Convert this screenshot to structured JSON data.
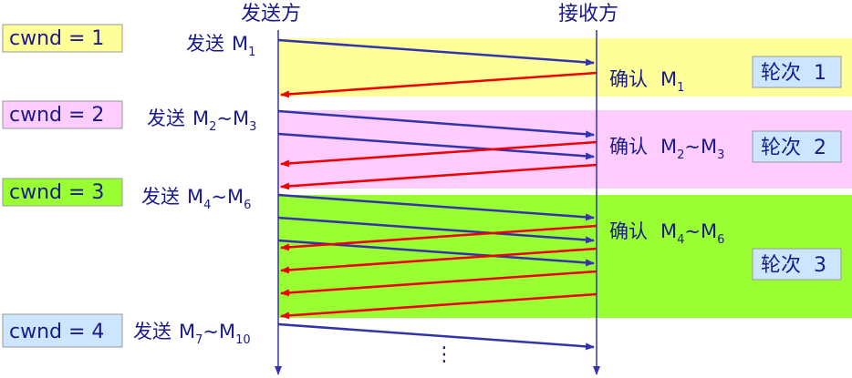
{
  "headers": {
    "sender": "发送方",
    "receiver": "接收方"
  },
  "rounds": [
    {
      "cwnd_label": "cwnd = 1",
      "cwnd_color": "#ffff99",
      "band_color": "#ffff99",
      "send_text": "发送",
      "send_m": "M",
      "send_sub_a": "1",
      "send_sep": "",
      "send_m2": "",
      "send_sub_b": "",
      "ack_text": "确认",
      "ack_m": "M",
      "ack_sub_a": "1",
      "ack_sep": "",
      "ack_m2": "",
      "ack_sub_b": "",
      "round_label": "轮次  1"
    },
    {
      "cwnd_label": "cwnd = 2",
      "cwnd_color": "#ffccff",
      "band_color": "#ffccff",
      "send_text": "发送",
      "send_m": "M",
      "send_sub_a": "2",
      "send_sep": "~",
      "send_m2": "M",
      "send_sub_b": "3",
      "ack_text": "确认",
      "ack_m": "M",
      "ack_sub_a": "2",
      "ack_sep": "~",
      "ack_m2": "M",
      "ack_sub_b": "3",
      "round_label": "轮次  2"
    },
    {
      "cwnd_label": "cwnd = 3",
      "cwnd_color": "#99ff33",
      "band_color": "#99ff33",
      "send_text": "发送",
      "send_m": "M",
      "send_sub_a": "4",
      "send_sep": "~",
      "send_m2": "M",
      "send_sub_b": "6",
      "ack_text": "确认",
      "ack_m": "M",
      "ack_sub_a": "4",
      "ack_sep": "~",
      "ack_m2": "M",
      "ack_sub_b": "6",
      "round_label": "轮次  3"
    }
  ],
  "final_send": {
    "cwnd_label": "cwnd = 4",
    "cwnd_color": "#cce6ff",
    "send_text": "发送",
    "send_m": "M",
    "send_sub_a": "7",
    "send_sep": "~",
    "send_m2": "M",
    "send_sub_b": "10"
  },
  "continuation": "⋮",
  "colors": {
    "send_arrow": "#3333aa",
    "ack_arrow": "#ee0000",
    "timeline": "#3333aa",
    "text": "#1a1a8c",
    "round_box": "#cce6ff"
  }
}
